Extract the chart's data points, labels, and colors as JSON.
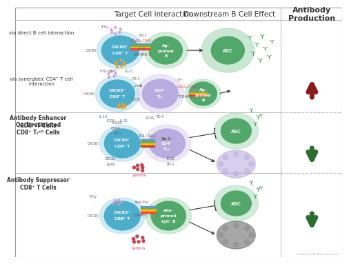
{
  "col_header1": "Target Cell Interaction",
  "col_header2": "Downstream B Cell Effect",
  "col_header3": "Antibody\nProduction",
  "row1_direct_label": "via direct B cell interaction",
  "row1_synergy_label": "via synergistic CD4⁺ T cell\ninteraction",
  "row1_bold_label": "Antibody Enhancer\nCD8⁺ T Cells",
  "row2_bold_label": "Qa-1 restricted\nCD8⁺ Tᵣᵉᴳ Cells",
  "row3_bold_label": "Antibody Suppressor\nCD8⁺ T Cells",
  "arrow_up_color": "#8B1A1A",
  "arrow_down_color": "#2E6B2E",
  "bg_color": "#FFFFFF",
  "cell_blue": "#4DAECC",
  "cell_blue_glow": "#A8D8EA",
  "cell_green": "#52A86B",
  "cell_green_glow": "#A8D8B8",
  "cell_purple": "#9B8FC0",
  "cell_lavender": "#B8ADE0",
  "cell_lavender_glow": "#D8D0F0",
  "grid_color": "#BBBBBB",
  "text_dark": "#333333",
  "text_white": "#FFFFFF",
  "text_label": "#555555",
  "watermark": "Created with Biorender.com",
  "header_fs": 7.5,
  "label_fs": 5.5,
  "cell_fs": 4.2,
  "tiny_fs": 3.6
}
